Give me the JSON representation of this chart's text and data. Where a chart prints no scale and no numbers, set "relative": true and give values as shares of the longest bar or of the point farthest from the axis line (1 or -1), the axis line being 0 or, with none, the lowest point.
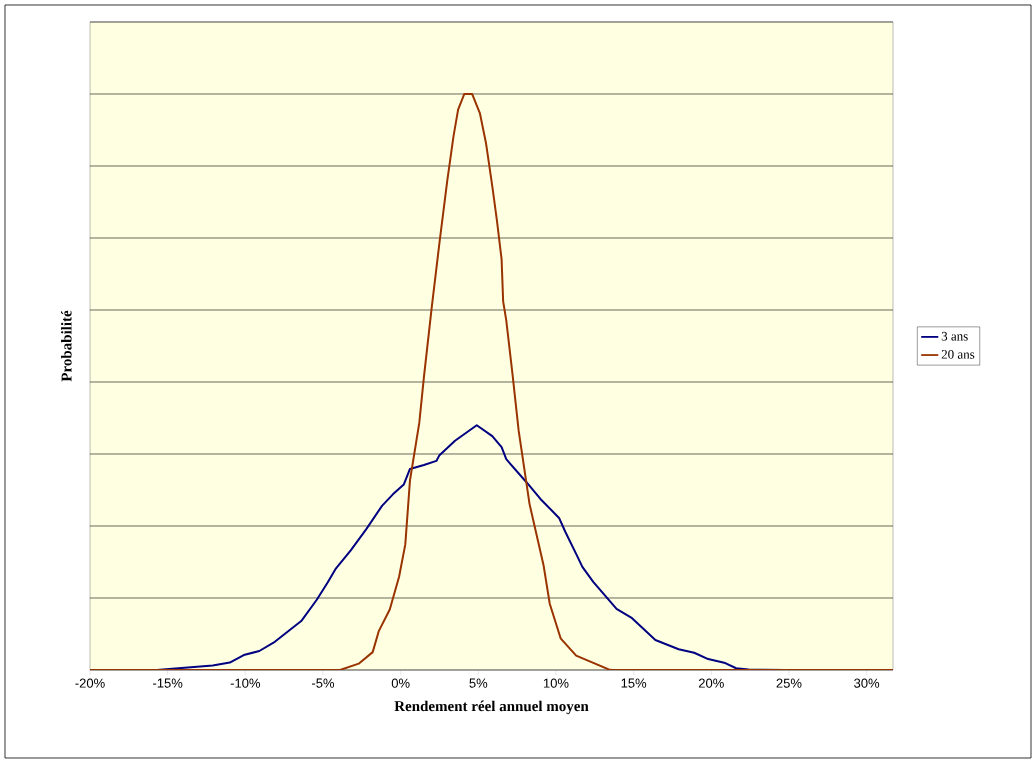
{
  "chart_data": {
    "type": "line",
    "xlabel": "Rendement réel annuel moyen",
    "ylabel": "Probabilité",
    "relative": true,
    "xlim": [
      -20,
      31.7
    ],
    "xticks": [
      {
        "value": -20,
        "label": "-20%"
      },
      {
        "value": -15,
        "label": "-15%"
      },
      {
        "value": -10,
        "label": "-10%"
      },
      {
        "value": -5,
        "label": "-5%"
      },
      {
        "value": 0,
        "label": "0%"
      },
      {
        "value": 5,
        "label": "5%"
      },
      {
        "value": 10,
        "label": "10%"
      },
      {
        "value": 15,
        "label": "15%"
      },
      {
        "value": 20,
        "label": "20%"
      },
      {
        "value": 25,
        "label": "25%"
      },
      {
        "value": 30,
        "label": "30%"
      }
    ],
    "grid": "y",
    "legend": "right",
    "marker": "none",
    "line_style": "solid",
    "series": [
      {
        "name": "3 ans",
        "color": "#000080",
        "x": [
          -20,
          -15.7,
          -12.1,
          -11.0,
          -10.1,
          -9.1,
          -8.1,
          -7.2,
          -6.4,
          -5.4,
          -4.7,
          -4.2,
          -3.2,
          -2.2,
          -1.2,
          -0.5,
          0.2,
          0.6,
          1.5,
          2.3,
          2.5,
          3.5,
          4.9,
          5.9,
          6.5,
          6.8,
          8.1,
          9.0,
          10.2,
          10.6,
          11.4,
          11.7,
          12.4,
          13.9,
          14.9,
          16.4,
          17.9,
          18.9,
          19.8,
          20.9,
          21.6,
          22.4,
          24.8,
          31.7
        ],
        "values": [
          0,
          0,
          0.008,
          0.013,
          0.026,
          0.033,
          0.049,
          0.068,
          0.085,
          0.122,
          0.152,
          0.175,
          0.208,
          0.245,
          0.285,
          0.305,
          0.322,
          0.349,
          0.356,
          0.363,
          0.373,
          0.398,
          0.425,
          0.406,
          0.387,
          0.366,
          0.326,
          0.297,
          0.264,
          0.24,
          0.196,
          0.179,
          0.153,
          0.106,
          0.09,
          0.052,
          0.036,
          0.03,
          0.019,
          0.012,
          0.003,
          0.001,
          0,
          0
        ]
      },
      {
        "name": "20 ans",
        "color": "#993300",
        "x": [
          -20,
          -3.9,
          -2.7,
          -1.8,
          -1.4,
          -0.7,
          -0.1,
          0.3,
          0.6,
          1.2,
          1.5,
          2.0,
          2.5,
          3.0,
          3.4,
          3.7,
          4.1,
          4.6,
          5.1,
          5.5,
          5.9,
          6.2,
          6.5,
          6.6,
          6.8,
          7.2,
          7.6,
          8.3,
          9.2,
          9.6,
          10.3,
          11.3,
          13.4,
          13.6,
          31.7
        ],
        "values": [
          0,
          0,
          0.011,
          0.031,
          0.068,
          0.105,
          0.162,
          0.218,
          0.329,
          0.429,
          0.509,
          0.629,
          0.742,
          0.849,
          0.926,
          0.973,
          1.0,
          1.0,
          0.967,
          0.914,
          0.84,
          0.78,
          0.713,
          0.64,
          0.607,
          0.514,
          0.415,
          0.288,
          0.182,
          0.115,
          0.055,
          0.025,
          0.001,
          0,
          0
        ]
      }
    ]
  }
}
